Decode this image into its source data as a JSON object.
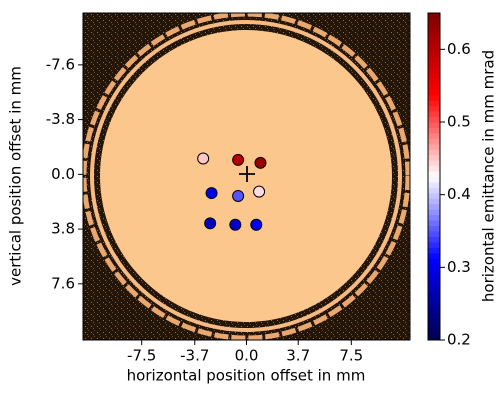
{
  "chart_data": {
    "type": "scatter",
    "xlabel": "horizontal position offset in mm",
    "ylabel": "vertical position offset in mm",
    "x": [
      -3.1,
      -0.6,
      1.0,
      -2.5,
      -0.6,
      0.9,
      -2.6,
      -0.8,
      0.7
    ],
    "y": [
      -1.1,
      -1.0,
      -0.8,
      1.3,
      1.5,
      1.2,
      3.4,
      3.5,
      3.5
    ],
    "values": [
      0.45,
      0.6,
      0.63,
      0.3,
      0.35,
      0.44,
      0.27,
      0.28,
      0.3
    ],
    "colormap": "seismic",
    "xlim": [
      -11.7,
      11.7
    ],
    "ylim": [
      11.5,
      -11.2
    ],
    "xticks": [
      -7.5,
      -3.7,
      {
        "value": 0,
        "label": "0.0"
      },
      3.7,
      7.5
    ],
    "yticks": [
      -7.6,
      -3.8,
      {
        "value": 0,
        "label": "0.0"
      },
      3.8,
      7.6
    ],
    "colorbar": {
      "label": "horizontal emittance in mm mrad",
      "lim": [
        0.2,
        0.65
      ],
      "ticks": [
        0.2,
        0.3,
        0.4,
        0.5,
        0.6
      ]
    }
  }
}
